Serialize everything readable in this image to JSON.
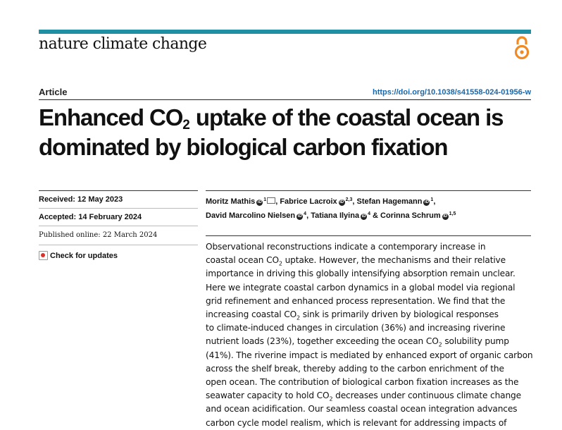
{
  "journal": "nature climate change",
  "article_type": "Article",
  "doi": "https://doi.org/10.1038/s41558-024-01956-w",
  "title": {
    "line1_a": "Enhanced CO",
    "line1_sub": "2",
    "line1_b": " uptake of the coastal ocean is",
    "line2": "dominated by biological carbon fixation"
  },
  "dates": {
    "received_label": "Received:",
    "received": "12 May 2023",
    "accepted_label": "Accepted:",
    "accepted": "14 February 2024",
    "published_label": "Published online:",
    "published": "22 March 2024"
  },
  "check_updates": "Check for updates",
  "authors": [
    {
      "name": "Moritz Mathis",
      "aff": "1"
    },
    {
      "name": "Fabrice Lacroix",
      "aff": "2,3"
    },
    {
      "name": "Stefan Hagemann",
      "aff": "1"
    },
    {
      "name": "David Marcolino Nielsen",
      "aff": "4"
    },
    {
      "name": "Tatiana Ilyina",
      "aff": "4"
    },
    {
      "name": "Corinna Schrum",
      "aff": "1,5"
    }
  ],
  "abstract_lines": [
    "Observational reconstructions indicate a contemporary increase in",
    [
      "coastal ocean CO",
      "2",
      " uptake. However, the mechanisms and their relative"
    ],
    "importance in driving this globally intensifying absorption remain unclear.",
    "Here we integrate coastal carbon dynamics in a global model via regional",
    "grid refinement and enhanced process representation. We find that the",
    [
      "increasing coastal CO",
      "2",
      " sink is primarily driven by biological responses"
    ],
    "to climate-induced changes in circulation (36%) and increasing riverine",
    [
      "nutrient loads (23%), together exceeding the ocean CO",
      "2",
      " solubility pump"
    ],
    "(41%). The riverine impact is mediated by enhanced export of organic carbon",
    "across the shelf break, thereby adding to the carbon enrichment of the",
    "open ocean. The contribution of biological carbon fixation increases as the",
    [
      "seawater capacity to hold CO",
      "2",
      " decreases under continuous climate change"
    ],
    "and ocean acidification. Our seamless coastal ocean integration advances",
    "carbon cycle model realism, which is relevant for addressing impacts of"
  ],
  "colors": {
    "accent_bar": "#1f8fa3",
    "doi_link": "#1a66a8",
    "open_access_icon": "#f08a24"
  },
  "icons": {
    "open_access": "open-access-icon",
    "orcid": "orcid-icon",
    "email": "email-icon",
    "check_updates": "check-updates-icon"
  }
}
